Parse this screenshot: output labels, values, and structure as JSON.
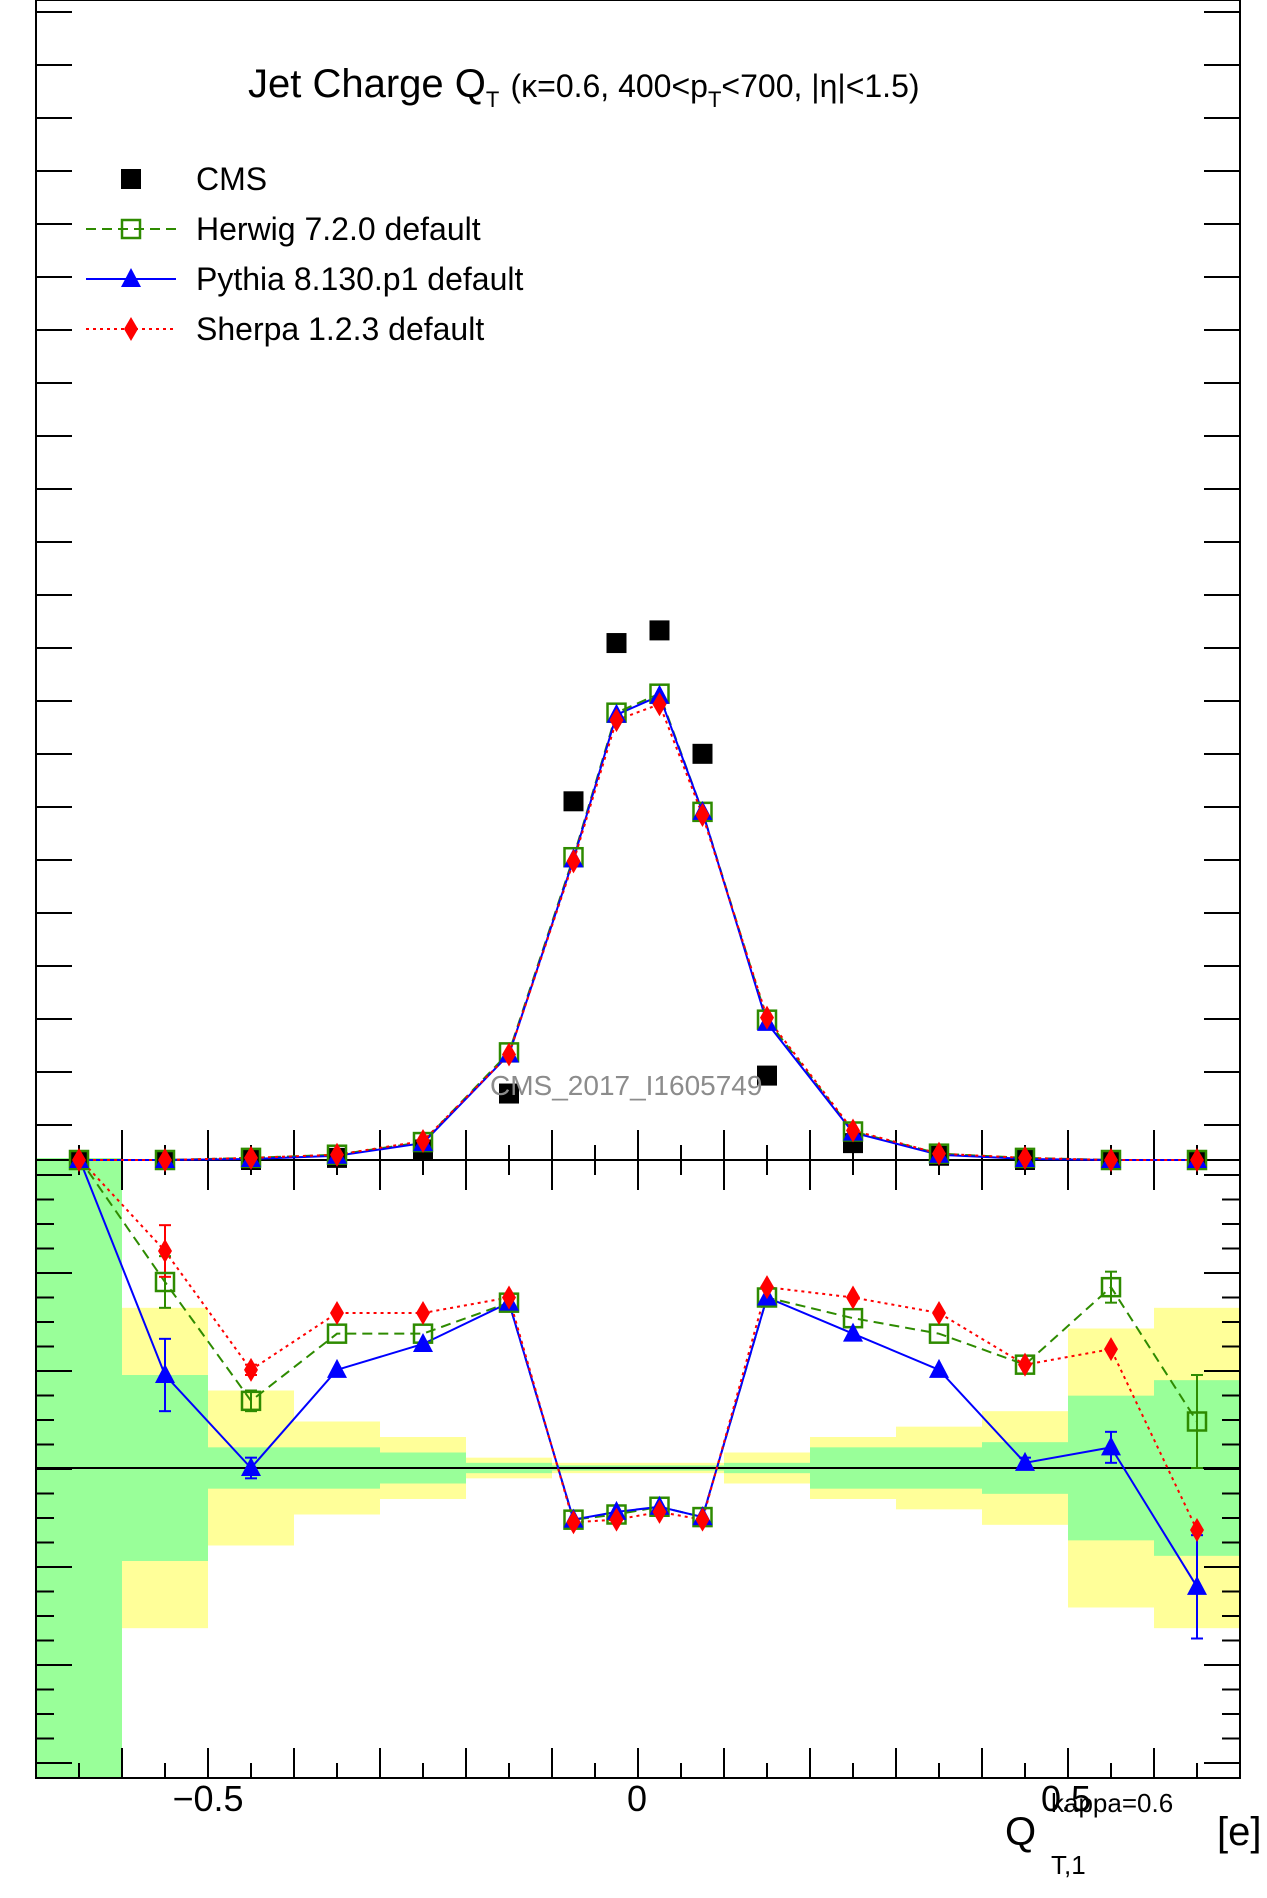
{
  "title": {
    "main": "Jet Charge Q",
    "main_sub": "T",
    "params_a": "(κ=0.6, 400<p",
    "params_sub": "T",
    "params_b": "<700, |η|<1.5)"
  },
  "legend": [
    {
      "key": "cms",
      "label": "CMS",
      "color": "#000000"
    },
    {
      "key": "herwig",
      "label": "Herwig 7.2.0 default",
      "color": "#2e8b00"
    },
    {
      "key": "pythia",
      "label": "Pythia 8.130.p1 default",
      "color": "#0000ff"
    },
    {
      "key": "sherpa",
      "label": "Sherpa 1.2.3 default",
      "color": "#ff0000"
    }
  ],
  "watermark": "CMS_2017_I1605749",
  "x_axis": {
    "label_main": "Q",
    "label_sup": "kappa=0.6",
    "label_sub": "T,1",
    "label_unit": "[e]",
    "tick_labels": [
      "−0.5",
      "0",
      "0.5"
    ],
    "tick_values": [
      -0.5,
      0,
      0.5
    ]
  },
  "chart_data": {
    "type": "scatter",
    "xlim": [
      -0.7,
      0.7
    ],
    "main_panel": {
      "ylim": [
        0,
        1
      ],
      "x": [
        -0.65,
        -0.55,
        -0.45,
        -0.35,
        -0.25,
        -0.15,
        -0.075,
        -0.025,
        0.025,
        0.075,
        0.15,
        0.25,
        0.35,
        0.45,
        0.55,
        0.65
      ],
      "series": [
        {
          "name": "CMS",
          "values": [
            0.0,
            0.0,
            0.0,
            0.002,
            0.01,
            0.063,
            0.34,
            0.49,
            0.502,
            0.385,
            0.08,
            0.016,
            0.004,
            0.0,
            0.0,
            0.0
          ]
        },
        {
          "name": "Herwig 7.2.0 default",
          "values": [
            0.0,
            0.0,
            0.002,
            0.005,
            0.017,
            0.102,
            0.287,
            0.424,
            0.442,
            0.33,
            0.133,
            0.027,
            0.006,
            0.002,
            0.0,
            0.0
          ]
        },
        {
          "name": "Pythia 8.130.p1 default",
          "values": [
            0.0,
            0.0,
            0.001,
            0.004,
            0.016,
            0.1,
            0.285,
            0.422,
            0.44,
            0.33,
            0.13,
            0.026,
            0.005,
            0.001,
            0.0,
            0.0
          ]
        },
        {
          "name": "Sherpa 1.2.3 default",
          "values": [
            0.0,
            0.0,
            0.002,
            0.005,
            0.018,
            0.1,
            0.283,
            0.417,
            0.432,
            0.327,
            0.135,
            0.028,
            0.006,
            0.002,
            0.0,
            0.0
          ]
        }
      ]
    },
    "ratio_panel": {
      "ylim": [
        -0.6,
        0.6
      ],
      "x": [
        -0.65,
        -0.55,
        -0.45,
        -0.35,
        -0.25,
        -0.15,
        -0.075,
        -0.025,
        0.025,
        0.075,
        0.15,
        0.25,
        0.35,
        0.45,
        0.55,
        0.65
      ],
      "series": [
        {
          "name": "Herwig 7.2.0 default",
          "values": [
            0.9,
            0.36,
            0.13,
            0.26,
            0.26,
            0.32,
            -0.1,
            -0.09,
            -0.075,
            -0.095,
            0.33,
            0.29,
            0.26,
            0.2,
            0.35,
            0.09
          ],
          "errors": [
            0,
            0.05,
            0.02,
            0,
            0,
            0,
            0,
            0,
            0,
            0,
            0,
            0,
            0,
            0,
            0.03,
            0.09
          ]
        },
        {
          "name": "Pythia 8.130.p1 default",
          "values": [
            0.9,
            0.18,
            0.0,
            0.19,
            0.24,
            0.32,
            -0.1,
            -0.085,
            -0.075,
            -0.095,
            0.33,
            0.26,
            0.19,
            0.01,
            0.04,
            -0.23
          ],
          "errors": [
            0,
            0.07,
            0.02,
            0,
            0,
            0,
            0,
            0,
            0,
            0,
            0,
            0,
            0,
            0.01,
            0.03,
            0.1
          ]
        },
        {
          "name": "Sherpa 1.2.3 default",
          "values": [
            0.9,
            0.42,
            0.19,
            0.3,
            0.3,
            0.33,
            -0.105,
            -0.1,
            -0.085,
            -0.1,
            0.35,
            0.33,
            0.3,
            0.2,
            0.23,
            -0.12
          ],
          "errors": [
            0,
            0.05,
            0.01,
            0,
            0,
            0,
            0,
            0,
            0,
            0,
            0,
            0,
            0,
            0,
            0,
            0
          ]
        }
      ],
      "bands": {
        "edges": [
          -0.7,
          -0.6,
          -0.5,
          -0.4,
          -0.3,
          -0.2,
          -0.1,
          0.0,
          0.1,
          0.2,
          0.3,
          0.4,
          0.5,
          0.6,
          0.7
        ],
        "green": [
          0.6,
          0.18,
          0.04,
          0.04,
          0.03,
          0.01,
          0.005,
          0.005,
          0.01,
          0.04,
          0.04,
          0.05,
          0.14,
          0.17
        ],
        "yellow": [
          0.6,
          0.31,
          0.15,
          0.09,
          0.06,
          0.02,
          0.01,
          0.01,
          0.03,
          0.06,
          0.08,
          0.11,
          0.27,
          0.31
        ]
      }
    }
  }
}
